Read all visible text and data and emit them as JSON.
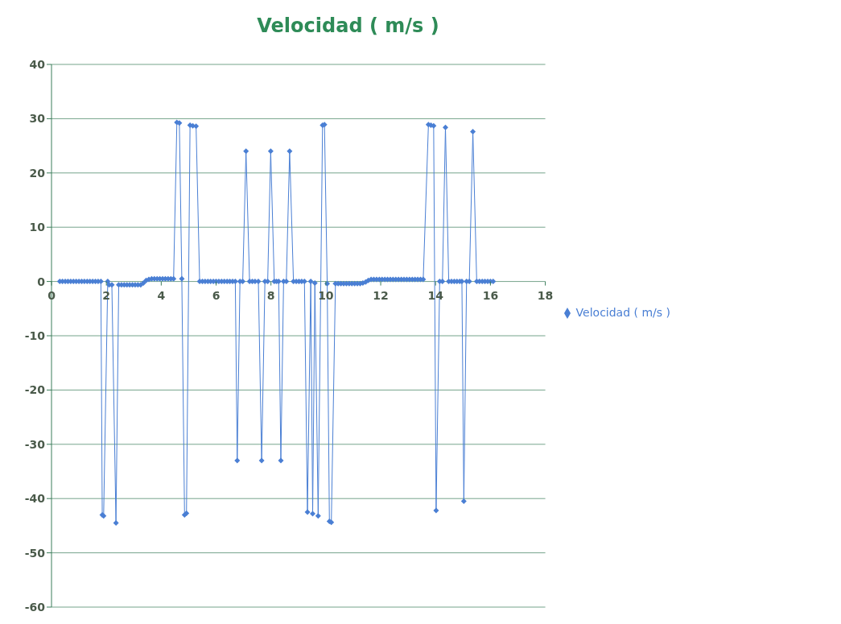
{
  "chart_data": {
    "type": "line",
    "title": "Velocidad ( m/s )",
    "xlim": [
      0,
      18
    ],
    "xticks": [
      0,
      2,
      4,
      6,
      8,
      10,
      12,
      14,
      16,
      18
    ],
    "ylim": [
      -60,
      40
    ],
    "yticks": [
      -60,
      -50,
      -40,
      -30,
      -20,
      -10,
      0,
      10,
      20,
      30,
      40
    ],
    "grid": "y",
    "legend": "right",
    "marker": "diamond",
    "series": [
      {
        "name": "Velocidad ( m/s )",
        "color": "#4a7fd4",
        "x": [
          0.3,
          0.4,
          0.5,
          0.6,
          0.7,
          0.8,
          0.9,
          1.0,
          1.1,
          1.2,
          1.3,
          1.4,
          1.5,
          1.6,
          1.7,
          1.8,
          1.85,
          1.9,
          2.05,
          2.1,
          2.2,
          2.35,
          2.45,
          2.55,
          2.65,
          2.75,
          2.85,
          2.95,
          3.05,
          3.15,
          3.25,
          3.35,
          3.45,
          3.55,
          3.65,
          3.75,
          3.85,
          3.95,
          4.05,
          4.15,
          4.25,
          4.35,
          4.45,
          4.57,
          4.66,
          4.75,
          4.85,
          4.92,
          5.05,
          5.15,
          5.27,
          5.4,
          5.5,
          5.6,
          5.7,
          5.8,
          5.9,
          6.0,
          6.1,
          6.2,
          6.3,
          6.4,
          6.5,
          6.6,
          6.7,
          6.77,
          6.87,
          6.97,
          7.09,
          7.22,
          7.32,
          7.42,
          7.54,
          7.66,
          7.78,
          7.88,
          7.99,
          8.12,
          8.2,
          8.28,
          8.36,
          8.46,
          8.56,
          8.68,
          8.82,
          8.92,
          9.02,
          9.12,
          9.22,
          9.33,
          9.45,
          9.52,
          9.6,
          9.72,
          9.88,
          9.95,
          10.05,
          10.13,
          10.2,
          10.35,
          10.45,
          10.55,
          10.65,
          10.75,
          10.85,
          10.95,
          11.05,
          11.15,
          11.25,
          11.35,
          11.45,
          11.55,
          11.65,
          11.75,
          11.85,
          11.95,
          12.05,
          12.15,
          12.25,
          12.35,
          12.45,
          12.55,
          12.65,
          12.75,
          12.85,
          12.95,
          13.05,
          13.15,
          13.25,
          13.35,
          13.45,
          13.55,
          13.74,
          13.83,
          13.93,
          14.02,
          14.15,
          14.25,
          14.36,
          14.48,
          14.58,
          14.68,
          14.78,
          14.88,
          14.96,
          15.03,
          15.13,
          15.23,
          15.36,
          15.5,
          15.6,
          15.7,
          15.8,
          15.9,
          16.0,
          16.1
        ],
        "values": [
          0,
          0,
          0,
          0,
          0,
          0,
          0,
          0,
          0,
          0,
          0,
          0,
          0,
          0,
          0,
          0,
          -43.0,
          -43.2,
          0,
          -0.6,
          -0.6,
          -44.5,
          -0.6,
          -0.6,
          -0.6,
          -0.6,
          -0.6,
          -0.6,
          -0.6,
          -0.6,
          -0.6,
          -0.3,
          0.2,
          0.4,
          0.5,
          0.5,
          0.5,
          0.5,
          0.5,
          0.5,
          0.5,
          0.5,
          0.5,
          29.3,
          29.2,
          0.5,
          -43.0,
          -42.7,
          28.8,
          28.7,
          28.6,
          0,
          0,
          0,
          0,
          0,
          0,
          0,
          0,
          0,
          0,
          0,
          0,
          0,
          0,
          -33,
          0,
          0,
          24,
          0,
          0,
          0,
          0,
          -33,
          0,
          0,
          24,
          0,
          0,
          0,
          -33,
          0,
          0,
          24,
          0,
          0,
          0,
          0,
          0,
          -42.5,
          0,
          -42.8,
          -0.3,
          -43.2,
          28.8,
          28.9,
          -0.4,
          -44.2,
          -44.4,
          -0.4,
          -0.4,
          -0.4,
          -0.4,
          -0.4,
          -0.4,
          -0.4,
          -0.4,
          -0.4,
          -0.4,
          -0.3,
          -0.1,
          0.2,
          0.4,
          0.4,
          0.4,
          0.4,
          0.4,
          0.4,
          0.4,
          0.4,
          0.4,
          0.4,
          0.4,
          0.4,
          0.4,
          0.4,
          0.4,
          0.4,
          0.4,
          0.4,
          0.4,
          0.4,
          28.9,
          28.8,
          28.7,
          -42.2,
          0,
          0,
          28.4,
          0,
          0,
          0,
          0,
          0,
          0,
          -40.5,
          0,
          0,
          27.6,
          0,
          0,
          0,
          0,
          0,
          0,
          0
        ]
      }
    ]
  }
}
